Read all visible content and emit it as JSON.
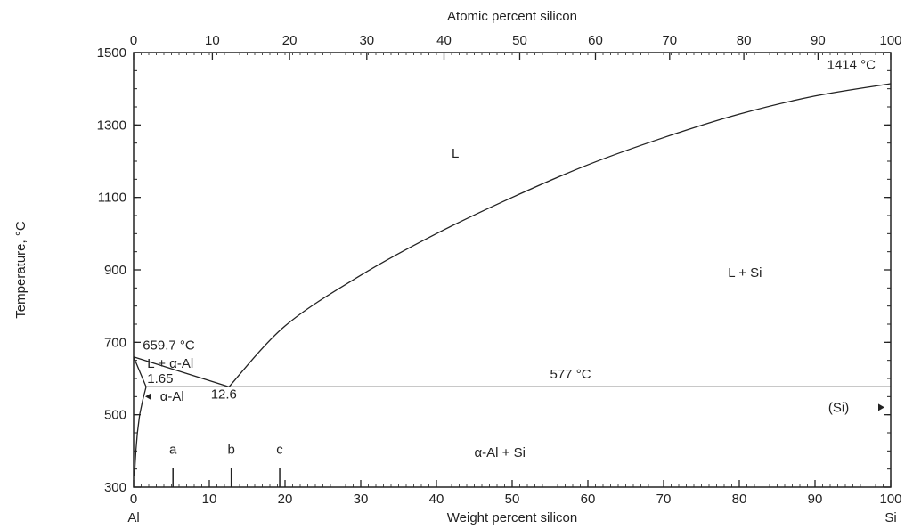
{
  "chart_data": {
    "type": "line",
    "title": "",
    "x_top_label": "Atomic percent silicon",
    "x_bottom_label": "Weight percent silicon",
    "y_label": "Temperature, °C",
    "xlim": [
      0,
      100
    ],
    "ylim": [
      300,
      1500
    ],
    "y_ticks": [
      300,
      500,
      700,
      900,
      1100,
      1300,
      1500
    ],
    "x_bottom_ticks": [
      0,
      10,
      20,
      30,
      40,
      50,
      60,
      70,
      80,
      90,
      100
    ],
    "x_top_ticks": [
      0,
      10,
      20,
      30,
      40,
      50,
      60,
      70,
      80,
      90,
      100
    ],
    "x_top_tick_positions_wt": [
      0,
      10.4,
      20.6,
      30.8,
      41.0,
      51.0,
      61.0,
      70.8,
      80.6,
      90.4,
      100
    ],
    "endpoint_labels": {
      "left": "Al",
      "right": "Si"
    },
    "series": [
      {
        "x": [
          0,
          12.6
        ],
        "y": [
          659.7,
          577
        ]
      },
      {
        "x": [
          12.6,
          20,
          30,
          40,
          50,
          60,
          70,
          80,
          90,
          100
        ],
        "y": [
          577,
          745,
          885,
          1000,
          1100,
          1190,
          1265,
          1330,
          1380,
          1414
        ]
      },
      {
        "x": [
          0,
          1.65,
          12.6,
          100
        ],
        "y": [
          659.7,
          577,
          577,
          577
        ]
      },
      {
        "x": [
          1.65,
          1.2,
          0.8,
          0.5,
          0.3,
          0.1
        ],
        "y": [
          577,
          540,
          500,
          450,
          400,
          330
        ]
      }
    ],
    "annotations": [
      {
        "text": "1414 °C",
        "x": 98,
        "y": 1455
      },
      {
        "text": "L",
        "x": 42,
        "y": 1210
      },
      {
        "text": "L + Si",
        "x": 78.5,
        "y": 880
      },
      {
        "text": "659.7 °C",
        "x": 1.2,
        "y": 680
      },
      {
        "text": "L + α-Al",
        "x": 1.8,
        "y": 630
      },
      {
        "text": "1.65",
        "x": 1.8,
        "y": 588
      },
      {
        "text": "577 °C",
        "x": 55,
        "y": 600
      },
      {
        "text": "α-Al",
        "x": 3.5,
        "y": 538
      },
      {
        "text": "12.6",
        "x": 10.2,
        "y": 545
      },
      {
        "text": "(Si)",
        "x": 94.5,
        "y": 508
      },
      {
        "text": "α-Al + Si",
        "x": 45,
        "y": 383
      },
      {
        "text": "a",
        "x": 5.2,
        "y": 392
      },
      {
        "text": "b",
        "x": 12.9,
        "y": 392
      },
      {
        "text": "c",
        "x": 19.3,
        "y": 392
      }
    ],
    "composition_markers": [
      {
        "label": "a",
        "x": 5.2
      },
      {
        "label": "b",
        "x": 12.9
      },
      {
        "label": "c",
        "x": 19.3
      }
    ],
    "grid": false
  }
}
